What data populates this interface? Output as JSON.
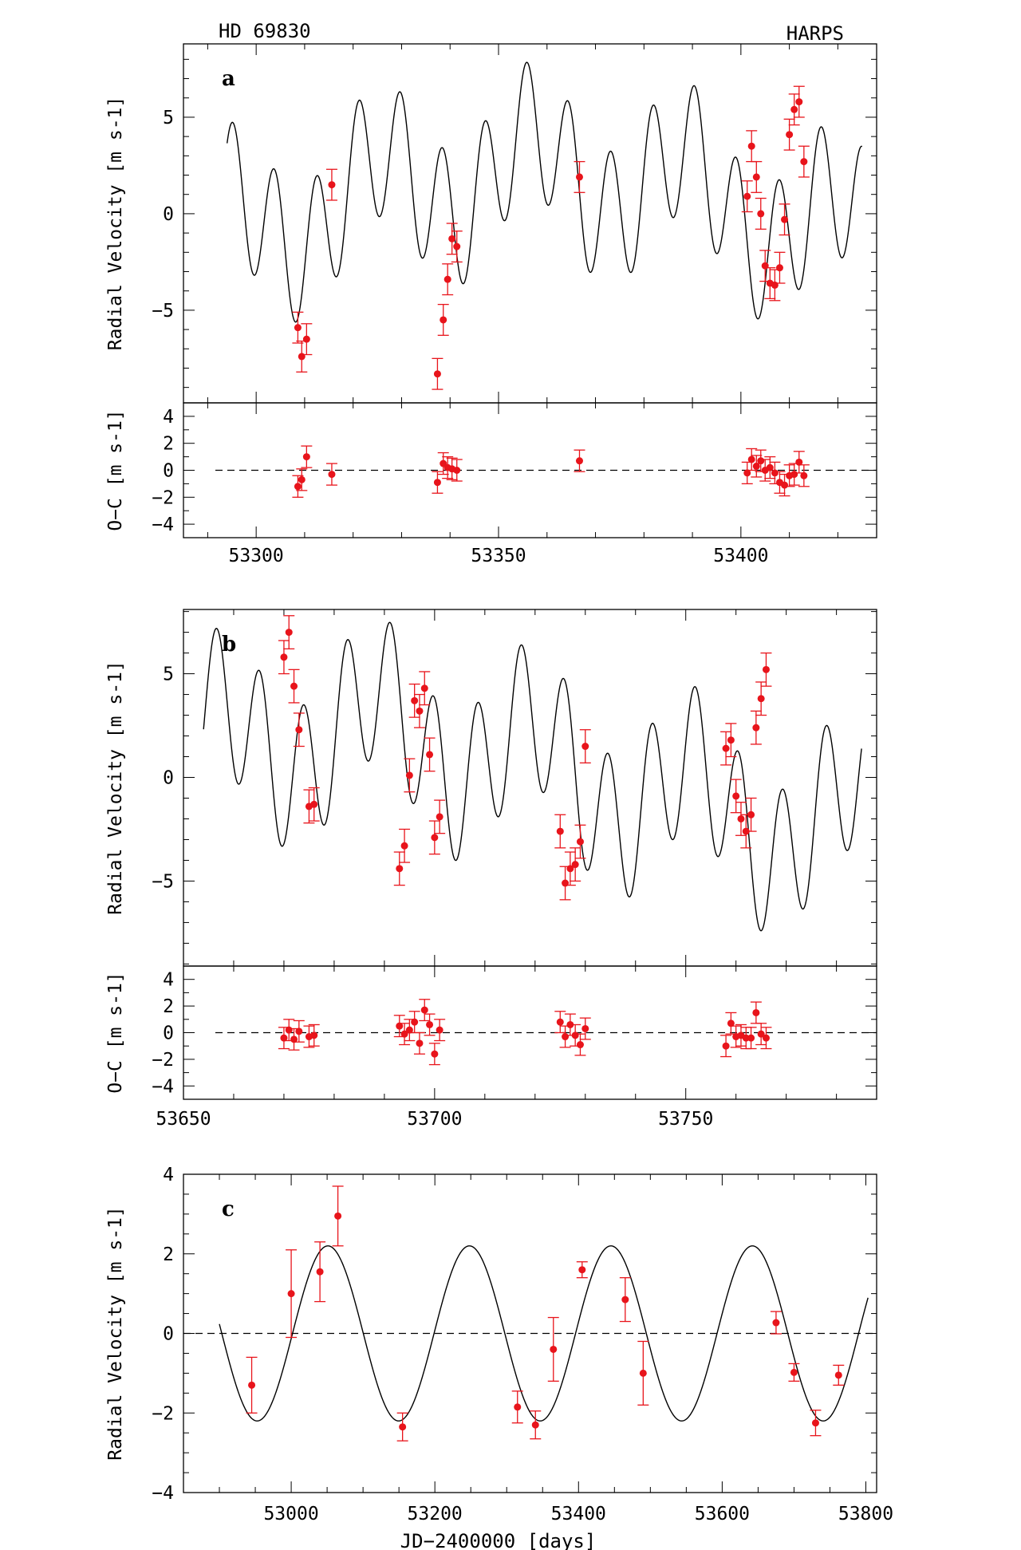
{
  "header": {
    "left": "HD 69830",
    "right": "HARPS"
  },
  "chart_data": [
    {
      "id": "a",
      "type": "line",
      "panel_label": "a",
      "top": {
        "ylabel": "Radial Velocity [m s-1]",
        "ylim": [
          -9.8,
          8.8
        ],
        "yticks": [
          -5,
          0,
          5
        ],
        "tick_labels": [
          "−5",
          "0",
          "5"
        ],
        "model_curve": {
          "x_start": 53294,
          "x_end": 53425,
          "offset": 0,
          "components": [
            {
              "amplitude": 3.5,
              "period": 8.667,
              "phase": 0.05
            },
            {
              "amplitude": 2.2,
              "period": 31.56,
              "phase": 0.6
            },
            {
              "amplitude": 2.2,
              "period": 197,
              "phase": 0.4
            }
          ]
        },
        "series": [
          {
            "points": [
              [
                53308.6,
                -5.9,
                0.8
              ],
              [
                53309.4,
                -7.4,
                0.8
              ],
              [
                53310.4,
                -6.5,
                0.8
              ],
              [
                53315.6,
                1.5,
                0.8
              ],
              [
                53337.4,
                -8.3,
                0.8
              ],
              [
                53338.6,
                -5.5,
                0.8
              ],
              [
                53339.5,
                -3.4,
                0.8
              ],
              [
                53340.4,
                -1.3,
                0.8
              ],
              [
                53341.4,
                -1.7,
                0.8
              ],
              [
                53366.7,
                1.9,
                0.8
              ],
              [
                53401.3,
                0.9,
                0.8
              ],
              [
                53402.2,
                3.5,
                0.8
              ],
              [
                53403.2,
                1.9,
                0.8
              ],
              [
                53404.1,
                0.0,
                0.8
              ],
              [
                53405.0,
                -2.7,
                0.8
              ],
              [
                53406.0,
                -3.6,
                0.8
              ],
              [
                53407.0,
                -3.7,
                0.8
              ],
              [
                53408.0,
                -2.8,
                0.8
              ],
              [
                53409.0,
                -0.3,
                0.8
              ],
              [
                53410.0,
                4.1,
                0.8
              ],
              [
                53411.0,
                5.4,
                0.8
              ],
              [
                53412.0,
                5.8,
                0.8
              ],
              [
                53413.0,
                2.7,
                0.8
              ]
            ]
          }
        ]
      },
      "bottom": {
        "ylabel": "O−C [m s-1]",
        "ylim": [
          -5,
          5
        ],
        "yticks": [
          -4,
          -2,
          0,
          2,
          4
        ],
        "tick_labels": [
          "−4",
          "−2",
          "0",
          "2",
          "4"
        ],
        "zero_line": true,
        "series": [
          {
            "points": [
              [
                53308.6,
                -1.2,
                0.8
              ],
              [
                53309.4,
                -0.7,
                0.8
              ],
              [
                53310.4,
                1.0,
                0.8
              ],
              [
                53315.6,
                -0.3,
                0.8
              ],
              [
                53337.4,
                -0.9,
                0.8
              ],
              [
                53338.6,
                0.5,
                0.8
              ],
              [
                53339.5,
                0.2,
                0.8
              ],
              [
                53340.4,
                0.1,
                0.8
              ],
              [
                53341.4,
                0.0,
                0.8
              ],
              [
                53366.7,
                0.7,
                0.8
              ],
              [
                53401.3,
                -0.2,
                0.8
              ],
              [
                53402.2,
                0.8,
                0.8
              ],
              [
                53403.2,
                0.3,
                0.8
              ],
              [
                53404.1,
                0.7,
                0.8
              ],
              [
                53405.0,
                0.0,
                0.8
              ],
              [
                53406.0,
                0.2,
                0.8
              ],
              [
                53407.0,
                -0.2,
                0.8
              ],
              [
                53408.0,
                -0.9,
                0.8
              ],
              [
                53409.0,
                -1.1,
                0.8
              ],
              [
                53410.0,
                -0.4,
                0.8
              ],
              [
                53411.0,
                -0.3,
                0.8
              ],
              [
                53412.0,
                0.6,
                0.8
              ],
              [
                53413.0,
                -0.4,
                0.8
              ]
            ]
          }
        ]
      },
      "xlim": [
        53285,
        53428
      ],
      "xticks": [
        53300,
        53350,
        53400
      ],
      "x_tick_labels": [
        "53300",
        "53350",
        "53400"
      ],
      "x_minor_step": 10
    },
    {
      "id": "b",
      "type": "line",
      "panel_label": "b",
      "top": {
        "ylabel": "Radial Velocity [m s-1]",
        "ylim": [
          -9.1,
          8.1
        ],
        "yticks": [
          -5,
          0,
          5
        ],
        "tick_labels": [
          "−5",
          "0",
          "5"
        ],
        "model_curve": {
          "x_start": 53654,
          "x_end": 53785,
          "offset": 0,
          "components": [
            {
              "amplitude": 3.5,
              "period": 8.667,
              "phase": 0.35
            },
            {
              "amplitude": 2.2,
              "period": 31.56,
              "phase": 0.1
            },
            {
              "amplitude": 2.2,
              "period": 197,
              "phase": 0.75
            }
          ]
        },
        "series": [
          {
            "points": [
              [
                53670.0,
                5.8,
                0.8
              ],
              [
                53671.0,
                7.0,
                0.8
              ],
              [
                53672.0,
                4.4,
                0.8
              ],
              [
                53673.0,
                2.3,
                0.8
              ],
              [
                53675.0,
                -1.4,
                0.8
              ],
              [
                53676.0,
                -1.3,
                0.8
              ],
              [
                53693.0,
                -4.4,
                0.8
              ],
              [
                53694.0,
                -3.3,
                0.8
              ],
              [
                53695.0,
                0.1,
                0.8
              ],
              [
                53696.0,
                3.7,
                0.8
              ],
              [
                53697.0,
                3.2,
                0.8
              ],
              [
                53698.0,
                4.3,
                0.8
              ],
              [
                53699.0,
                1.1,
                0.8
              ],
              [
                53700.0,
                -2.9,
                0.8
              ],
              [
                53701.0,
                -1.9,
                0.8
              ],
              [
                53725.0,
                -2.6,
                0.8
              ],
              [
                53726.0,
                -5.1,
                0.8
              ],
              [
                53727.0,
                -4.4,
                0.8
              ],
              [
                53728.0,
                -4.2,
                0.8
              ],
              [
                53729.0,
                -3.1,
                0.8
              ],
              [
                53730.0,
                1.5,
                0.8
              ],
              [
                53758.0,
                1.4,
                0.8
              ],
              [
                53759.0,
                1.8,
                0.8
              ],
              [
                53760.0,
                -0.9,
                0.8
              ],
              [
                53761.0,
                -2.0,
                0.8
              ],
              [
                53762.0,
                -2.6,
                0.8
              ],
              [
                53763.0,
                -1.8,
                0.8
              ],
              [
                53764.0,
                2.4,
                0.8
              ],
              [
                53765.0,
                3.8,
                0.8
              ],
              [
                53766.0,
                5.2,
                0.8
              ]
            ]
          }
        ]
      },
      "bottom": {
        "ylabel": "O−C [m s-1]",
        "ylim": [
          -5,
          5
        ],
        "yticks": [
          -4,
          -2,
          0,
          2,
          4
        ],
        "tick_labels": [
          "−4",
          "−2",
          "0",
          "2",
          "4"
        ],
        "zero_line": true,
        "series": [
          {
            "points": [
              [
                53670.0,
                -0.4,
                0.8
              ],
              [
                53671.0,
                0.2,
                0.8
              ],
              [
                53672.0,
                -0.5,
                0.8
              ],
              [
                53673.0,
                0.1,
                0.8
              ],
              [
                53675.0,
                -0.3,
                0.8
              ],
              [
                53676.0,
                -0.2,
                0.8
              ],
              [
                53693.0,
                0.5,
                0.8
              ],
              [
                53694.0,
                -0.1,
                0.8
              ],
              [
                53695.0,
                0.2,
                0.8
              ],
              [
                53696.0,
                0.8,
                0.8
              ],
              [
                53697.0,
                -0.8,
                0.8
              ],
              [
                53698.0,
                1.7,
                0.8
              ],
              [
                53699.0,
                0.6,
                0.8
              ],
              [
                53700.0,
                -1.6,
                0.8
              ],
              [
                53701.0,
                0.2,
                0.8
              ],
              [
                53725.0,
                0.8,
                0.8
              ],
              [
                53726.0,
                -0.3,
                0.8
              ],
              [
                53727.0,
                0.6,
                0.8
              ],
              [
                53728.0,
                -0.2,
                0.8
              ],
              [
                53729.0,
                -0.9,
                0.8
              ],
              [
                53730.0,
                0.3,
                0.8
              ],
              [
                53758.0,
                -1.0,
                0.8
              ],
              [
                53759.0,
                0.7,
                0.8
              ],
              [
                53760.0,
                -0.3,
                0.8
              ],
              [
                53761.0,
                -0.2,
                0.8
              ],
              [
                53762.0,
                -0.4,
                0.8
              ],
              [
                53763.0,
                -0.4,
                0.8
              ],
              [
                53764.0,
                1.5,
                0.8
              ],
              [
                53765.0,
                -0.1,
                0.8
              ],
              [
                53766.0,
                -0.4,
                0.8
              ]
            ]
          }
        ]
      },
      "xlim": [
        53650,
        53788
      ],
      "xticks": [
        53650,
        53700,
        53750
      ],
      "x_tick_labels": [
        "53650",
        "53700",
        "53750"
      ],
      "x_minor_step": 10
    },
    {
      "id": "c",
      "type": "line",
      "panel_label": "c",
      "top": {
        "ylabel": "Radial Velocity [m s-1]",
        "ylim": [
          -4,
          4
        ],
        "yticks": [
          -4,
          -2,
          0,
          2,
          4
        ],
        "tick_labels": [
          "−4",
          "−2",
          "0",
          "2",
          "4"
        ],
        "zero_line": true,
        "model_curve": {
          "x_start": 52900,
          "x_end": 53803,
          "offset": 0,
          "components": [
            {
              "amplitude": 2.2,
              "period": 197,
              "phase": 0.955
            }
          ]
        },
        "series": [
          {
            "points": [
              [
                52945,
                -1.3,
                0.7
              ],
              [
                53000,
                1.0,
                1.1
              ],
              [
                53040,
                1.55,
                0.75
              ],
              [
                53065,
                2.95,
                0.75
              ],
              [
                53155,
                -2.35,
                0.35
              ],
              [
                53315,
                -1.85,
                0.4
              ],
              [
                53340,
                -2.3,
                0.35
              ],
              [
                53365,
                -0.4,
                0.8
              ],
              [
                53405,
                1.6,
                0.2
              ],
              [
                53465,
                0.85,
                0.55
              ],
              [
                53490,
                -1.0,
                0.8
              ],
              [
                53675,
                0.27,
                0.28
              ],
              [
                53700,
                -0.98,
                0.22
              ],
              [
                53730,
                -2.25,
                0.32
              ],
              [
                53762,
                -1.05,
                0.25
              ]
            ]
          }
        ]
      },
      "xlim": [
        52850,
        53815
      ],
      "xticks": [
        53000,
        53200,
        53400,
        53600,
        53800
      ],
      "x_tick_labels": [
        "53000",
        "53200",
        "53400",
        "53600",
        "53800"
      ],
      "x_minor_step": 50,
      "xlabel": "JD−2400000 [days]"
    }
  ]
}
